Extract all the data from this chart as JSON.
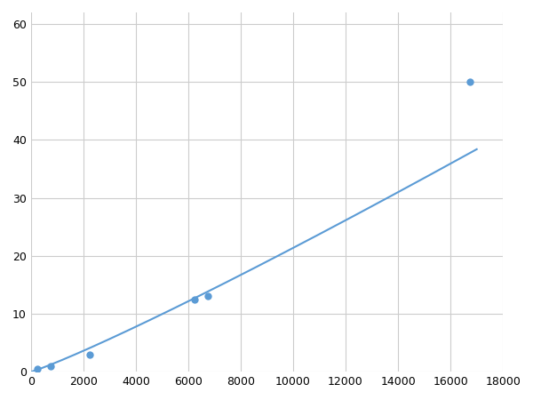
{
  "x_points": [
    250,
    750,
    2250,
    6250,
    6750,
    16750
  ],
  "y_points": [
    0.5,
    1.0,
    3.0,
    12.5,
    13.0,
    50.0
  ],
  "marker_x": [
    250,
    750,
    2250,
    6250,
    6750,
    16750
  ],
  "marker_y": [
    0.5,
    1.0,
    3.0,
    12.5,
    13.0,
    50.0
  ],
  "line_color": "#5b9bd5",
  "marker_color": "#5b9bd5",
  "marker_size": 6,
  "line_width": 1.5,
  "xlim": [
    0,
    18000
  ],
  "ylim": [
    0,
    62
  ],
  "xticks": [
    0,
    2000,
    4000,
    6000,
    8000,
    10000,
    12000,
    14000,
    16000,
    18000
  ],
  "yticks": [
    0,
    10,
    20,
    30,
    40,
    50,
    60
  ],
  "grid_color": "#cccccc",
  "background_color": "#ffffff",
  "tick_fontsize": 9
}
